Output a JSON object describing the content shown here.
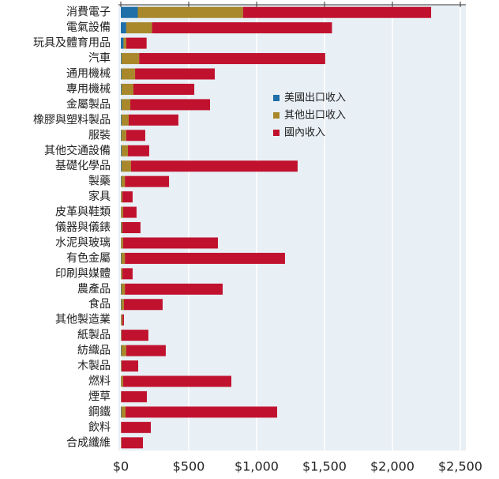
{
  "chart_data": {
    "type": "stacked-barh",
    "categories": [
      "消費電子",
      "電氣設備",
      "玩具及體育用品",
      "汽車",
      "通用機械",
      "專用機械",
      "金屬製品",
      "橡膠與塑料製品",
      "服裝",
      "其他交通設備",
      "基礎化學品",
      "製藥",
      "家具",
      "皮革與鞋類",
      "儀器與儀錶",
      "水泥與玻璃",
      "有色金屬",
      "印刷與媒體",
      "農產品",
      "食品",
      "其他製造業",
      "紙製品",
      "紡織品",
      "木製品",
      "燃料",
      "煙草",
      "鋼鐵",
      "飲料",
      "合成纖維"
    ],
    "series": [
      {
        "name": "美國出口收入",
        "color": "#1f6fa8",
        "values": [
          125,
          40,
          20,
          5,
          5,
          5,
          5,
          5,
          3,
          5,
          5,
          3,
          2,
          2,
          3,
          2,
          3,
          2,
          3,
          3,
          2,
          2,
          3,
          2,
          2,
          1,
          3,
          1,
          1
        ]
      },
      {
        "name": "其他出口收入",
        "color": "#a8882a",
        "values": [
          775,
          190,
          20,
          130,
          100,
          88,
          65,
          53,
          37,
          47,
          70,
          27,
          10,
          15,
          9,
          15,
          27,
          10,
          27,
          20,
          10,
          4,
          37,
          4,
          15,
          2,
          32,
          2,
          3
        ]
      },
      {
        "name": "國內收入",
        "color": "#c0122e",
        "values": [
          1385,
          1325,
          150,
          1370,
          587,
          448,
          587,
          366,
          140,
          157,
          1227,
          325,
          75,
          99,
          133,
          698,
          1179,
          75,
          720,
          285,
          11,
          197,
          291,
          122,
          797,
          189,
          1116,
          218,
          159
        ]
      }
    ],
    "xlim": [
      0,
      2500
    ],
    "xticks": [
      {
        "value": 0,
        "label": "$0"
      },
      {
        "value": 500,
        "label": "$500"
      },
      {
        "value": 1000,
        "label": "$1,000"
      },
      {
        "value": 1500,
        "label": "$1,500"
      },
      {
        "value": 2000,
        "label": "$2,000"
      },
      {
        "value": 2500,
        "label": "$2,500"
      }
    ],
    "grid": true,
    "legend": "center"
  }
}
